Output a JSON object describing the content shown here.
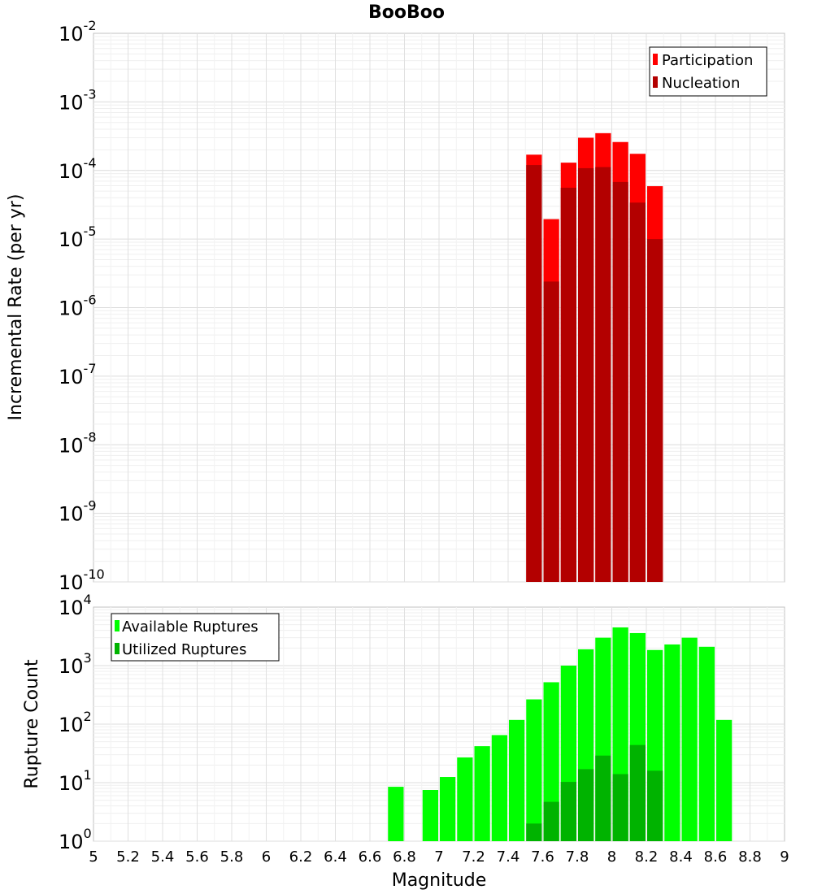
{
  "title": "BooBoo",
  "chart_data": [
    {
      "type": "bar",
      "name": "top",
      "ylabel": "Incremental Rate (per yr)",
      "yscale": "log",
      "ylim_exp": [
        -10,
        -2
      ],
      "xlim": [
        5,
        9
      ],
      "bar_width": 0.1,
      "legend_position": "top-right",
      "series": [
        {
          "name": "Participation",
          "color": "#ff0000",
          "x": [
            7.55,
            7.65,
            7.75,
            7.85,
            7.95,
            8.05,
            8.15,
            8.25
          ],
          "values": [
            0.00017,
            1.95e-05,
            0.00013,
            0.0003,
            0.00035,
            0.00026,
            0.000175,
            5.9e-05
          ]
        },
        {
          "name": "Nucleation",
          "color": "#b30000",
          "x": [
            7.55,
            7.65,
            7.75,
            7.85,
            7.95,
            8.05,
            8.15,
            8.25
          ],
          "values": [
            0.00012,
            2.4e-06,
            5.6e-05,
            0.000108,
            0.000112,
            6.8e-05,
            3.4e-05,
            1e-05
          ]
        }
      ]
    },
    {
      "type": "bar",
      "name": "bottom",
      "ylabel": "Rupture Count",
      "xlabel": "Magnitude",
      "yscale": "log",
      "ylim_exp": [
        0,
        4
      ],
      "xlim": [
        5,
        9
      ],
      "bar_width": 0.1,
      "legend_position": "top-left",
      "x_ticks": [
        "5",
        "5.2",
        "5.4",
        "5.6",
        "5.8",
        "6",
        "6.2",
        "6.4",
        "6.6",
        "6.8",
        "7",
        "7.2",
        "7.4",
        "7.6",
        "7.8",
        "8",
        "8.2",
        "8.4",
        "8.6",
        "8.8",
        "9"
      ],
      "series": [
        {
          "name": "Available Ruptures",
          "color": "#00ff00",
          "x": [
            6.75,
            6.95,
            7.05,
            7.15,
            7.25,
            7.35,
            7.45,
            7.55,
            7.65,
            7.75,
            7.85,
            7.95,
            8.05,
            8.15,
            8.25,
            8.35,
            8.45,
            8.55,
            8.65
          ],
          "values": [
            8.5,
            7.5,
            12.5,
            27,
            42,
            65,
            118,
            265,
            520,
            1000,
            1900,
            3000,
            4500,
            3600,
            1850,
            2300,
            3000,
            2100,
            118
          ]
        },
        {
          "name": "Utilized Ruptures",
          "color": "#00b300",
          "x": [
            7.55,
            7.65,
            7.75,
            7.85,
            7.95,
            8.05,
            8.15,
            8.25
          ],
          "values": [
            2,
            4.7,
            10.3,
            17,
            29,
            14,
            44,
            16
          ]
        }
      ]
    }
  ]
}
